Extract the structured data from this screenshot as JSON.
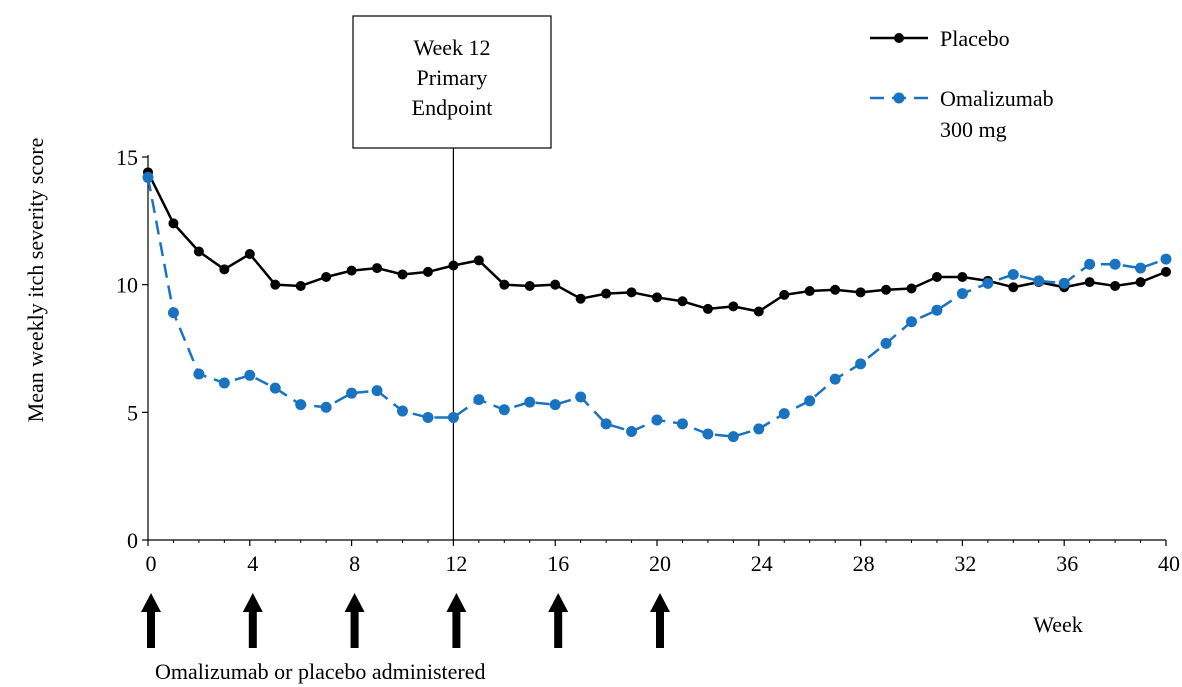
{
  "chart_data": {
    "type": "line",
    "ylabel": "Mean weekly itch severity score",
    "xlabel": "Week",
    "xlim": [
      0,
      40
    ],
    "ylim": [
      0,
      15
    ],
    "x_ticks": [
      0,
      4,
      8,
      12,
      16,
      20,
      24,
      28,
      32,
      36,
      40
    ],
    "y_ticks": [
      0,
      5,
      10,
      15
    ],
    "grid": false,
    "legend_position": "top-right",
    "x": [
      0,
      1,
      2,
      3,
      4,
      5,
      6,
      7,
      8,
      9,
      10,
      11,
      12,
      13,
      14,
      15,
      16,
      17,
      18,
      19,
      20,
      21,
      22,
      23,
      24,
      25,
      26,
      27,
      28,
      29,
      30,
      31,
      32,
      33,
      34,
      35,
      36,
      37,
      38,
      39,
      40
    ],
    "series": [
      {
        "name": "Placebo",
        "color": "#000000",
        "dashed": false,
        "values": [
          14.4,
          12.4,
          11.3,
          10.6,
          11.2,
          10.0,
          9.95,
          10.3,
          10.55,
          10.65,
          10.4,
          10.5,
          10.75,
          10.95,
          10.0,
          9.95,
          10.0,
          9.45,
          9.65,
          9.7,
          9.5,
          9.35,
          9.05,
          9.15,
          8.95,
          9.6,
          9.75,
          9.8,
          9.7,
          9.8,
          9.85,
          10.3,
          10.3,
          10.15,
          9.9,
          10.1,
          9.9,
          10.1,
          9.95,
          10.1,
          10.5
        ]
      },
      {
        "name": "Omalizumab 300 mg",
        "color": "#1a73c0",
        "dashed": true,
        "values": [
          14.2,
          8.9,
          6.5,
          6.15,
          6.45,
          5.95,
          5.3,
          5.2,
          5.75,
          5.85,
          5.05,
          4.8,
          4.8,
          5.5,
          5.1,
          5.4,
          5.3,
          5.6,
          4.55,
          4.25,
          4.7,
          4.55,
          4.15,
          4.05,
          4.35,
          4.95,
          5.45,
          6.3,
          6.9,
          7.7,
          8.55,
          9.0,
          9.65,
          10.05,
          10.4,
          10.15,
          10.05,
          10.8,
          10.8,
          10.65,
          11.0
        ]
      }
    ],
    "legend_labels": {
      "placebo": "Placebo",
      "omalizumab_line1": "Omalizumab",
      "omalizumab_line2": "300 mg"
    },
    "annotation": {
      "line1": "Week 12",
      "line2": "Primary",
      "line3": "Endpoint",
      "x": 12
    },
    "dosing": {
      "weeks": [
        0,
        4,
        8,
        12,
        16,
        20
      ],
      "label": "Omalizumab or placebo administered"
    }
  }
}
